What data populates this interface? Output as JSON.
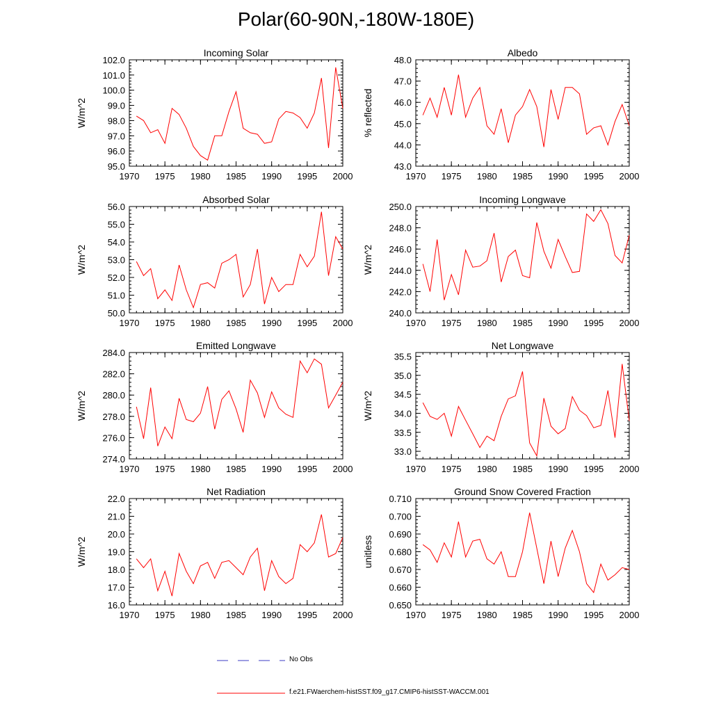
{
  "figure_title": "Polar(60-90N,-180W-180E)",
  "legend": {
    "obs_label": "No Obs",
    "obs_color": "#3b3bc4",
    "model_label": "f.e21.FWaerchem-histSST.f09_g17.CMIP6-histSST-WACCM.001",
    "model_color": "#ff0000"
  },
  "chart_data": [
    {
      "type": "line",
      "title": "Incoming Solar",
      "ylabel": "W/m^2",
      "xlim": [
        1970,
        2000
      ],
      "ylim": [
        95.0,
        102.0
      ],
      "yticks": [
        "95.0",
        "96.0",
        "97.0",
        "98.0",
        "99.0",
        "100.0",
        "101.0",
        "102.0"
      ],
      "xticks": [
        "1970",
        "1975",
        "1980",
        "1985",
        "1990",
        "1995",
        "2000"
      ],
      "series": [
        {
          "color": "#ff0000",
          "x": [
            1971,
            1972,
            1973,
            1974,
            1975,
            1976,
            1977,
            1978,
            1979,
            1980,
            1981,
            1982,
            1983,
            1984,
            1985,
            1986,
            1987,
            1988,
            1989,
            1990,
            1991,
            1992,
            1993,
            1994,
            1995,
            1996,
            1997,
            1998,
            1999,
            2000
          ],
          "y": [
            98.3,
            98.0,
            97.2,
            97.4,
            96.5,
            98.8,
            98.4,
            97.5,
            96.3,
            95.7,
            95.4,
            97.0,
            97.0,
            98.6,
            99.9,
            97.5,
            97.2,
            97.1,
            96.5,
            96.6,
            98.1,
            98.6,
            98.5,
            98.2,
            97.5,
            98.5,
            100.8,
            96.2,
            101.5,
            98.8
          ]
        }
      ]
    },
    {
      "type": "line",
      "title": "Albedo",
      "ylabel": "% reflected",
      "xlim": [
        1970,
        2000
      ],
      "ylim": [
        43.0,
        48.0
      ],
      "yticks": [
        "43.0",
        "44.0",
        "45.0",
        "46.0",
        "47.0",
        "48.0"
      ],
      "xticks": [
        "1970",
        "1975",
        "1980",
        "1985",
        "1990",
        "1995",
        "2000"
      ],
      "series": [
        {
          "color": "#ff0000",
          "x": [
            1971,
            1972,
            1973,
            1974,
            1975,
            1976,
            1977,
            1978,
            1979,
            1980,
            1981,
            1982,
            1983,
            1984,
            1985,
            1986,
            1987,
            1988,
            1989,
            1990,
            1991,
            1992,
            1993,
            1994,
            1995,
            1996,
            1997,
            1998,
            1999,
            2000
          ],
          "y": [
            45.4,
            46.2,
            45.3,
            46.7,
            45.4,
            47.3,
            45.3,
            46.2,
            46.7,
            44.9,
            44.5,
            45.7,
            44.1,
            45.4,
            45.8,
            46.6,
            45.8,
            43.9,
            46.6,
            45.2,
            46.7,
            46.7,
            46.4,
            44.5,
            44.8,
            44.9,
            44.0,
            45.1,
            45.9,
            44.9
          ]
        }
      ]
    },
    {
      "type": "line",
      "title": "Absorbed Solar",
      "ylabel": "W/m^2",
      "xlim": [
        1970,
        2000
      ],
      "ylim": [
        50.0,
        56.0
      ],
      "yticks": [
        "50.0",
        "51.0",
        "52.0",
        "53.0",
        "54.0",
        "55.0",
        "56.0"
      ],
      "xticks": [
        "1970",
        "1975",
        "1980",
        "1985",
        "1990",
        "1995",
        "2000"
      ],
      "series": [
        {
          "color": "#ff0000",
          "x": [
            1971,
            1972,
            1973,
            1974,
            1975,
            1976,
            1977,
            1978,
            1979,
            1980,
            1981,
            1982,
            1983,
            1984,
            1985,
            1986,
            1987,
            1988,
            1989,
            1990,
            1991,
            1992,
            1993,
            1994,
            1995,
            1996,
            1997,
            1998,
            1999,
            2000
          ],
          "y": [
            52.9,
            52.1,
            52.5,
            50.8,
            51.3,
            50.7,
            52.7,
            51.3,
            50.3,
            51.6,
            51.7,
            51.4,
            52.8,
            53.0,
            53.3,
            50.9,
            51.6,
            53.6,
            50.5,
            52.0,
            51.2,
            51.6,
            51.6,
            53.3,
            52.6,
            53.2,
            55.7,
            52.1,
            54.3,
            53.6
          ]
        }
      ]
    },
    {
      "type": "line",
      "title": "Incoming Longwave",
      "ylabel": "W/m^2",
      "xlim": [
        1970,
        2000
      ],
      "ylim": [
        240.0,
        250.0
      ],
      "yticks": [
        "240.0",
        "242.0",
        "244.0",
        "246.0",
        "248.0",
        "250.0"
      ],
      "xticks": [
        "1970",
        "1975",
        "1980",
        "1985",
        "1990",
        "1995",
        "2000"
      ],
      "series": [
        {
          "color": "#ff0000",
          "x": [
            1971,
            1972,
            1973,
            1974,
            1975,
            1976,
            1977,
            1978,
            1979,
            1980,
            1981,
            1982,
            1983,
            1984,
            1985,
            1986,
            1987,
            1988,
            1989,
            1990,
            1991,
            1992,
            1993,
            1994,
            1995,
            1996,
            1997,
            1998,
            1999,
            2000
          ],
          "y": [
            244.6,
            242.0,
            246.9,
            241.2,
            243.6,
            241.7,
            245.9,
            244.3,
            244.4,
            244.9,
            247.5,
            242.9,
            245.3,
            245.9,
            243.5,
            243.3,
            248.5,
            245.8,
            244.2,
            246.9,
            245.3,
            243.8,
            243.9,
            249.3,
            248.6,
            249.7,
            248.4,
            245.4,
            244.7,
            247.3
          ]
        }
      ]
    },
    {
      "type": "line",
      "title": "Emitted Longwave",
      "ylabel": "W/m^2",
      "xlim": [
        1970,
        2000
      ],
      "ylim": [
        274.0,
        284.0
      ],
      "yticks": [
        "274.0",
        "276.0",
        "278.0",
        "280.0",
        "282.0",
        "284.0"
      ],
      "xticks": [
        "1970",
        "1975",
        "1980",
        "1985",
        "1990",
        "1995",
        "2000"
      ],
      "series": [
        {
          "color": "#ff0000",
          "x": [
            1971,
            1972,
            1973,
            1974,
            1975,
            1976,
            1977,
            1978,
            1979,
            1980,
            1981,
            1982,
            1983,
            1984,
            1985,
            1986,
            1987,
            1988,
            1989,
            1990,
            1991,
            1992,
            1993,
            1994,
            1995,
            1996,
            1997,
            1998,
            1999,
            2000
          ],
          "y": [
            278.9,
            275.9,
            280.7,
            275.2,
            277.0,
            275.9,
            279.7,
            277.7,
            277.5,
            278.3,
            280.8,
            276.8,
            279.6,
            280.4,
            278.7,
            276.5,
            281.4,
            280.2,
            277.9,
            280.3,
            278.8,
            278.2,
            277.9,
            283.2,
            282.1,
            283.4,
            282.9,
            278.8,
            280.0,
            281.2
          ]
        }
      ]
    },
    {
      "type": "line",
      "title": "Net Longwave",
      "ylabel": "W/m^2",
      "xlim": [
        1970,
        2000
      ],
      "ylim": [
        32.8,
        35.6
      ],
      "yticks": [
        "33.0",
        "33.5",
        "34.0",
        "34.5",
        "35.0",
        "35.5"
      ],
      "xticks": [
        "1970",
        "1975",
        "1980",
        "1985",
        "1990",
        "1995",
        "2000"
      ],
      "series": [
        {
          "color": "#ff0000",
          "x": [
            1971,
            1972,
            1973,
            1974,
            1975,
            1976,
            1977,
            1978,
            1979,
            1980,
            1981,
            1982,
            1983,
            1984,
            1985,
            1986,
            1987,
            1988,
            1989,
            1990,
            1991,
            1992,
            1993,
            1994,
            1995,
            1996,
            1997,
            1998,
            1999,
            2000
          ],
          "y": [
            34.28,
            33.92,
            33.84,
            34.0,
            33.4,
            34.18,
            33.82,
            33.46,
            33.1,
            33.4,
            33.28,
            33.92,
            34.38,
            34.46,
            35.1,
            33.22,
            32.88,
            34.4,
            33.66,
            33.46,
            33.6,
            34.44,
            34.08,
            33.94,
            33.62,
            33.68,
            34.6,
            33.36,
            35.3,
            33.8
          ]
        }
      ]
    },
    {
      "type": "line",
      "title": "Net Radiation",
      "ylabel": "W/m^2",
      "xlim": [
        1970,
        2000
      ],
      "ylim": [
        16.0,
        22.0
      ],
      "yticks": [
        "16.0",
        "17.0",
        "18.0",
        "19.0",
        "20.0",
        "21.0",
        "22.0"
      ],
      "xticks": [
        "1970",
        "1975",
        "1980",
        "1985",
        "1990",
        "1995",
        "2000"
      ],
      "series": [
        {
          "color": "#ff0000",
          "x": [
            1971,
            1972,
            1973,
            1974,
            1975,
            1976,
            1977,
            1978,
            1979,
            1980,
            1981,
            1982,
            1983,
            1984,
            1985,
            1986,
            1987,
            1988,
            1989,
            1990,
            1991,
            1992,
            1993,
            1994,
            1995,
            1996,
            1997,
            1998,
            1999,
            2000
          ],
          "y": [
            18.6,
            18.1,
            18.6,
            16.8,
            17.9,
            16.5,
            18.9,
            17.9,
            17.2,
            18.2,
            18.4,
            17.5,
            18.4,
            18.5,
            18.1,
            17.7,
            18.7,
            19.2,
            16.8,
            18.5,
            17.6,
            17.2,
            17.5,
            19.4,
            19.0,
            19.5,
            21.1,
            18.7,
            18.9,
            19.8
          ]
        }
      ]
    },
    {
      "type": "line",
      "title": "Ground Snow Covered Fraction",
      "ylabel": "unitless",
      "xlim": [
        1970,
        2000
      ],
      "ylim": [
        0.65,
        0.71
      ],
      "yticks": [
        "0.650",
        "0.660",
        "0.670",
        "0.680",
        "0.690",
        "0.700",
        "0.710"
      ],
      "xticks": [
        "1970",
        "1975",
        "1980",
        "1985",
        "1990",
        "1995",
        "2000"
      ],
      "series": [
        {
          "color": "#ff0000",
          "x": [
            1971,
            1972,
            1973,
            1974,
            1975,
            1976,
            1977,
            1978,
            1979,
            1980,
            1981,
            1982,
            1983,
            1984,
            1985,
            1986,
            1987,
            1988,
            1989,
            1990,
            1991,
            1992,
            1993,
            1994,
            1995,
            1996,
            1997,
            1998,
            1999,
            2000
          ],
          "y": [
            0.684,
            0.681,
            0.674,
            0.685,
            0.677,
            0.697,
            0.677,
            0.686,
            0.687,
            0.676,
            0.673,
            0.68,
            0.666,
            0.666,
            0.68,
            0.702,
            0.682,
            0.662,
            0.686,
            0.666,
            0.682,
            0.692,
            0.68,
            0.662,
            0.657,
            0.673,
            0.664,
            0.667,
            0.671,
            0.67
          ]
        }
      ]
    }
  ]
}
